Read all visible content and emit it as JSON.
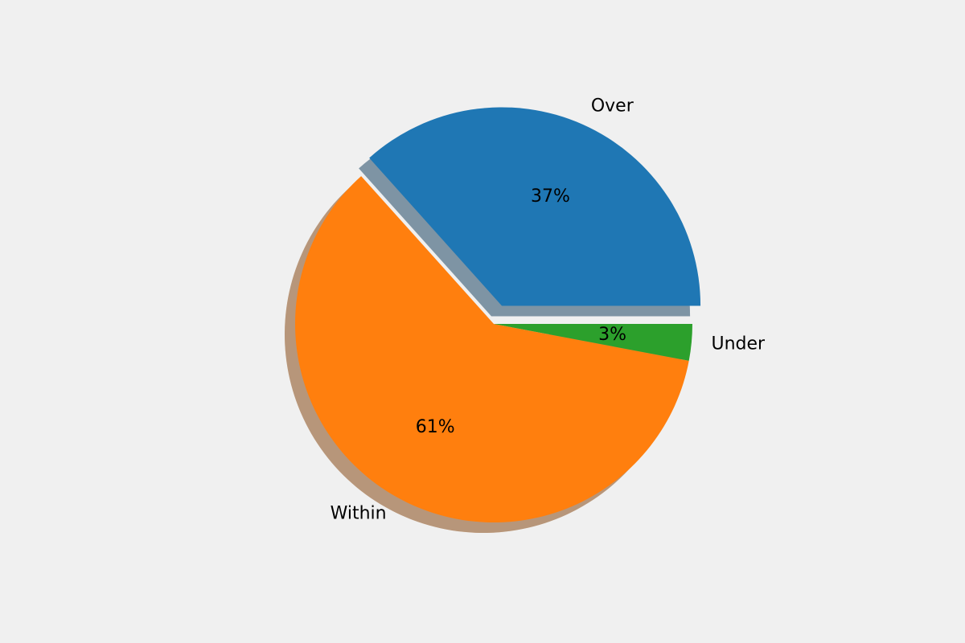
{
  "chart_data": {
    "type": "pie",
    "categories": [
      "Over",
      "Within",
      "Under"
    ],
    "values": [
      37,
      61,
      3
    ],
    "value_labels": [
      "37%",
      "61%",
      "3%"
    ],
    "colors": [
      "#1f77b4",
      "#ff7f0e",
      "#2ca02c"
    ],
    "explode": [
      0.1,
      0,
      0
    ],
    "shadow": true,
    "startangle": 0
  }
}
